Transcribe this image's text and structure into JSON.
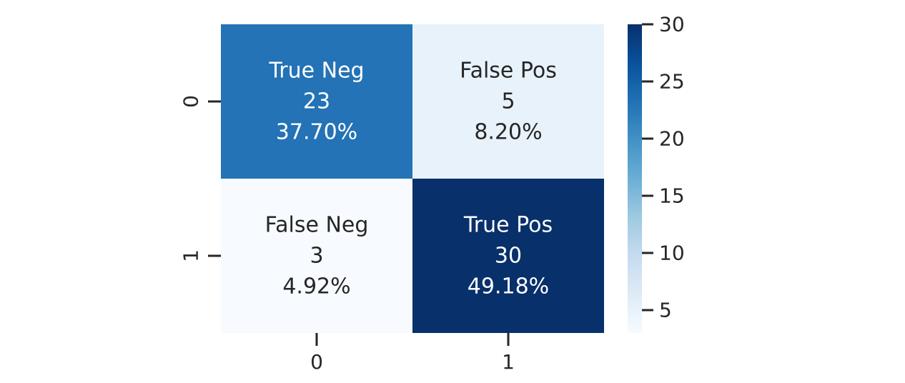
{
  "chart_data": {
    "type": "heatmap",
    "title": "",
    "xlabel": "",
    "ylabel": "",
    "x_categories": [
      "0",
      "1"
    ],
    "y_categories": [
      "0",
      "1"
    ],
    "cells": [
      {
        "row": 0,
        "col": 0,
        "value": 23,
        "label": "True Neg",
        "percent": "37.70%"
      },
      {
        "row": 0,
        "col": 1,
        "value": 5,
        "label": "False Pos",
        "percent": "8.20%"
      },
      {
        "row": 1,
        "col": 0,
        "value": 3,
        "label": "False Neg",
        "percent": "4.92%"
      },
      {
        "row": 1,
        "col": 1,
        "value": 30,
        "label": "True Pos",
        "percent": "49.18%"
      }
    ],
    "colorbar": {
      "min": 3,
      "max": 30,
      "ticks": [
        5,
        10,
        15,
        20,
        25,
        30
      ],
      "colormap": "Blues"
    },
    "colors": {
      "low": "#f7fbff",
      "high": "#08306b",
      "dark_text": "#262626",
      "light_text": "#ffffff"
    }
  }
}
